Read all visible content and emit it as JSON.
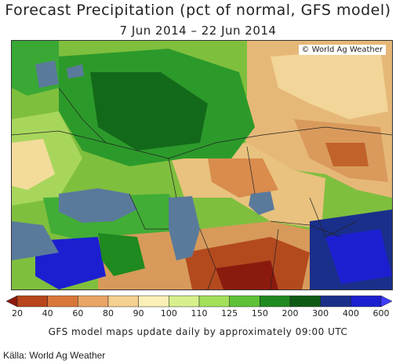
{
  "title": "Forecast Precipitation (pct of normal, GFS model)",
  "subtitle": "7 Jun 2014 – 22 Jun 2014",
  "credit": "© World Ag Weather",
  "colorbar": {
    "ticks": [
      "20",
      "40",
      "60",
      "80",
      "90",
      "100",
      "110",
      "125",
      "150",
      "200",
      "300",
      "400",
      "600"
    ],
    "colors": [
      "#8b1a0e",
      "#b8451b",
      "#d9773a",
      "#e9a565",
      "#f5d08e",
      "#fbf0b8",
      "#d8f08c",
      "#a3e05a",
      "#5dc236",
      "#1f8a1f",
      "#0f5a14",
      "#1a2f8a",
      "#1c1fd0",
      "#3c3cff"
    ]
  },
  "footnote": "GFS model maps update daily by approximately 09:00 UTC",
  "source": "Källa: World Ag Weather"
}
